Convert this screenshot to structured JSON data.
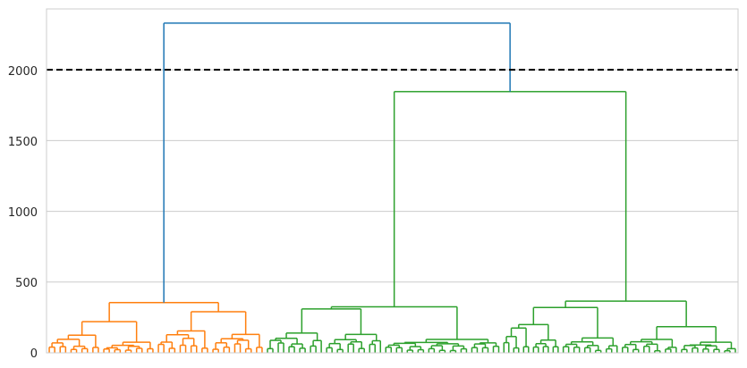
{
  "chart_data": {
    "type": "dendrogram",
    "title": "",
    "xlabel": "",
    "ylabel": "",
    "ylim": [
      0,
      2430
    ],
    "yticks": [
      "0",
      "500",
      "1000",
      "1500",
      "2000"
    ],
    "grid": "horizontal",
    "threshold": 2000,
    "colors": {
      "link_above_threshold": "#1f77b4",
      "cluster_1": "#ff7f0e",
      "cluster_2": "#2ca02c",
      "threshold_line": "#000000",
      "grid": "#cccccc",
      "frame": "#cccccc",
      "tick_label": "#262626"
    },
    "root_merge_height": 2330,
    "cluster_1": {
      "color": "cluster_1",
      "merge_height": 355,
      "sub_merges": [
        {
          "height": 290,
          "children": [
            {
              "height": 155
            },
            {
              "height": 130
            }
          ]
        },
        {
          "height": 220,
          "children": [
            {
              "height": 125
            },
            {
              "height": 75
            }
          ]
        }
      ]
    },
    "cluster_2": {
      "color": "cluster_2",
      "merge_height": 1845,
      "sub_merges": [
        {
          "height": 325,
          "children": [
            {
              "height": 310,
              "children": [
                {
                  "height": 140
                },
                {
                  "height": 130
                }
              ]
            },
            {
              "height": 95
            }
          ]
        },
        {
          "height": 365,
          "children": [
            {
              "height": 320,
              "children": [
                {
                  "height": 200,
                  "children": [
                    {
                      "height": 175
                    },
                    {
                      "height": 90
                    }
                  ]
                },
                {
                  "height": 105
                }
              ]
            },
            {
              "height": 185,
              "children": [
                {
                  "height": 95
                },
                {
                  "height": 75
                }
              ]
            }
          ]
        }
      ]
    }
  }
}
